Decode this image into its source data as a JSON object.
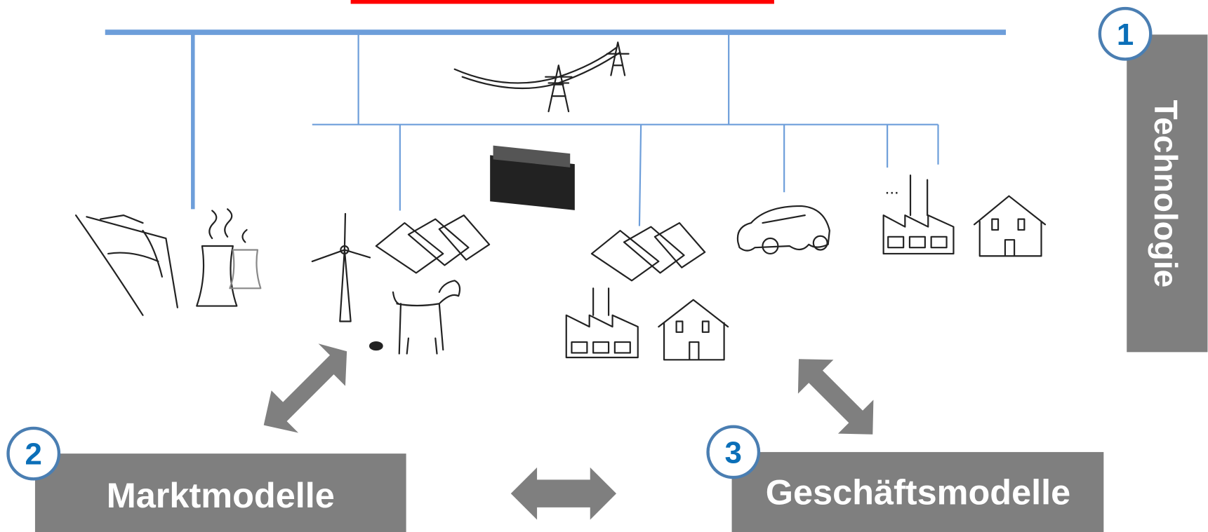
{
  "pillars": [
    {
      "number": "1",
      "label": "Technologie"
    },
    {
      "number": "2",
      "label": "Marktmodelle"
    },
    {
      "number": "3",
      "label": "Geschäftsmodelle"
    }
  ],
  "ellipsis": "..."
}
